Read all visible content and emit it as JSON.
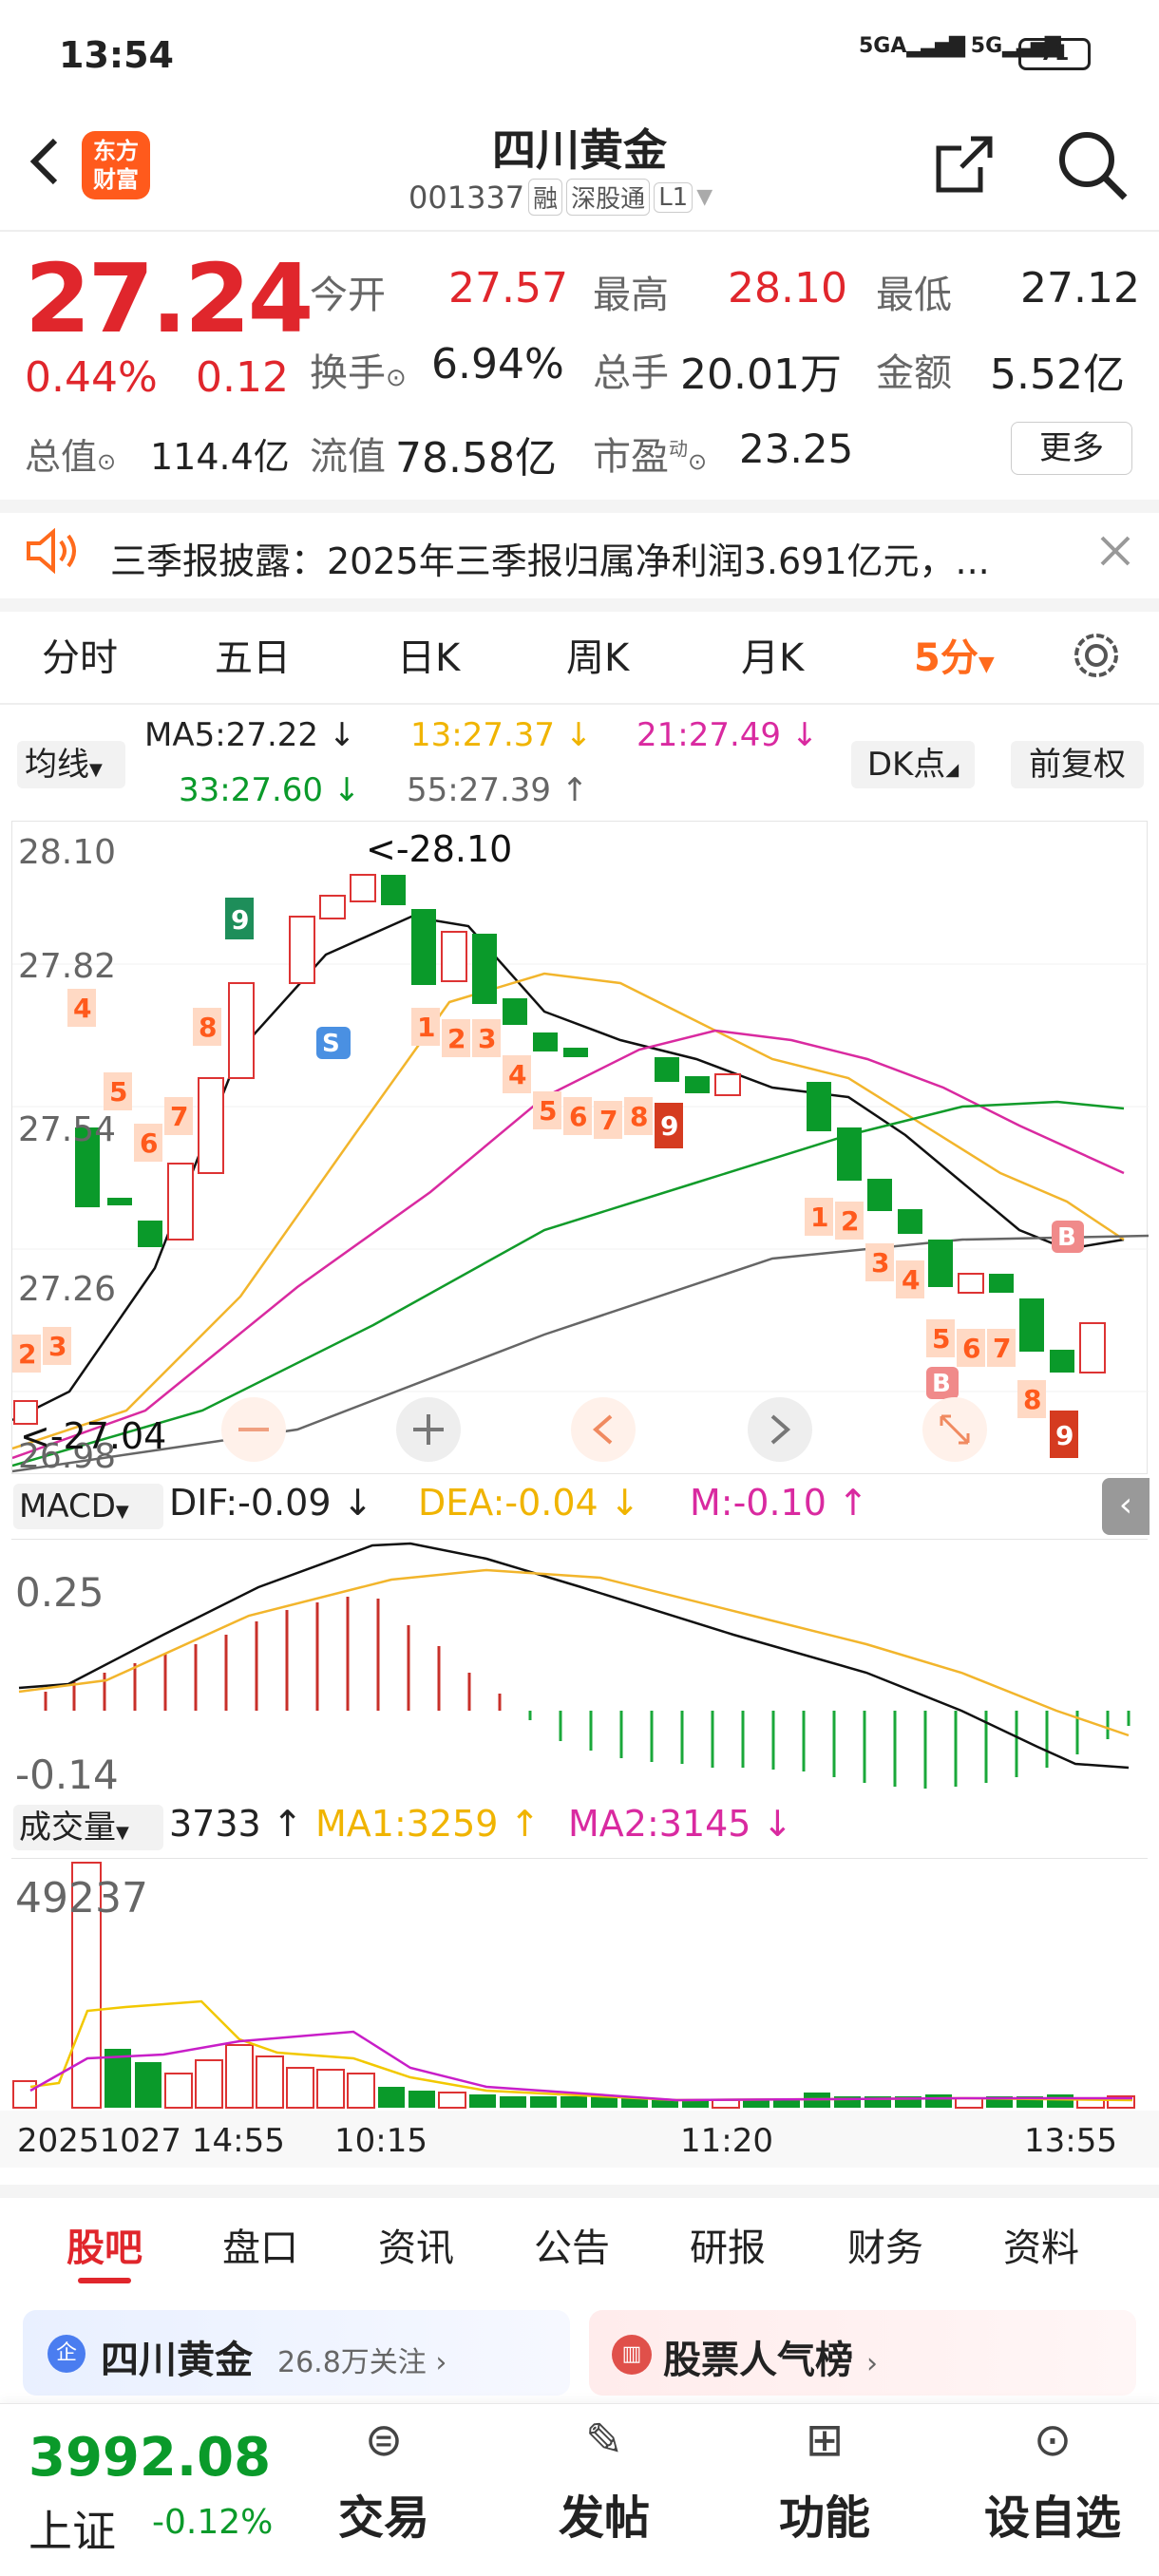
{
  "status_bar": {
    "time": "13:54",
    "net1": "5GA",
    "net2": "5G",
    "battery": "71"
  },
  "header": {
    "logo_line1": "东方",
    "logo_line2": "财富",
    "title": "四川黄金",
    "code": "001337",
    "tag1": "融",
    "tag2": "深股通",
    "tag3": "L1"
  },
  "quote": {
    "price": "27.24",
    "change_pct": "0.44%",
    "change": "0.12",
    "open_label": "今开",
    "open": "27.57",
    "high_label": "最高",
    "high": "28.10",
    "low_label": "最低",
    "low": "27.12",
    "turnover_label": "换手",
    "turnover": "6.94%",
    "volume_label": "总手",
    "volume": "20.01万",
    "amount_label": "金额",
    "amount": "5.52亿",
    "mcap_label": "总值",
    "mcap": "114.4亿",
    "float_label": "流值",
    "float": "78.58亿",
    "pe_label": "市盈",
    "pe_sup": "动",
    "pe": "23.25",
    "more": "更多"
  },
  "notice": {
    "text": "三季报披露：2025年三季报归属净利润3.691亿元，..."
  },
  "period_tabs": [
    "分时",
    "五日",
    "日K",
    "周K",
    "月K",
    "5分"
  ],
  "ma_bar": {
    "select": "均线",
    "ma5": "MA5:27.22 ↓",
    "ma13": "13:27.37 ↓",
    "ma21": "21:27.49 ↓",
    "ma33": "33:27.60 ↓",
    "ma55": "55:27.39 ↑",
    "dk": "DK点",
    "fq": "前复权"
  },
  "kline": {
    "axis": [
      "28.10",
      "27.82",
      "27.54",
      "27.26",
      "26.98"
    ],
    "high_label": "<-28.10",
    "low_label": "<-27.04",
    "signals_top": [
      "9",
      "4",
      "8",
      "5",
      "6",
      "7",
      "1",
      "2",
      "3",
      "4",
      "5",
      "6",
      "7",
      "8",
      "9",
      "2",
      "3"
    ],
    "signals_bottom": [
      "1",
      "2",
      "3",
      "4",
      "5",
      "6",
      "7",
      "8",
      "9"
    ],
    "S": "S",
    "B": "B"
  },
  "macd": {
    "select": "MACD",
    "dif": "DIF:-0.09 ↓",
    "dea": "DEA:-0.04 ↓",
    "m": "M:-0.10 ↑",
    "axis_top": "0.25",
    "axis_bottom": "-0.14"
  },
  "vol": {
    "select": "成交量",
    "val": "3733 ↑",
    "ma1": "MA1:3259 ↑",
    "ma2": "MA2:3145 ↓",
    "axis_top": "49237"
  },
  "time_axis": {
    "t0": "20251027 14:55",
    "t1": "10:15",
    "t2": "11:20",
    "t3": "13:55"
  },
  "bottom_tabs": [
    "股吧",
    "盘口",
    "资讯",
    "公告",
    "研报",
    "财务",
    "资料"
  ],
  "cards": {
    "left_title": "四川黄金",
    "left_sub": "26.8万关注",
    "right_title": "股票人气榜"
  },
  "nav": {
    "index_value": "3992.08",
    "index_name": "上证",
    "index_change": "-0.12%",
    "trade": "交易",
    "post": "发帖",
    "func": "功能",
    "custom": "设自选"
  }
}
